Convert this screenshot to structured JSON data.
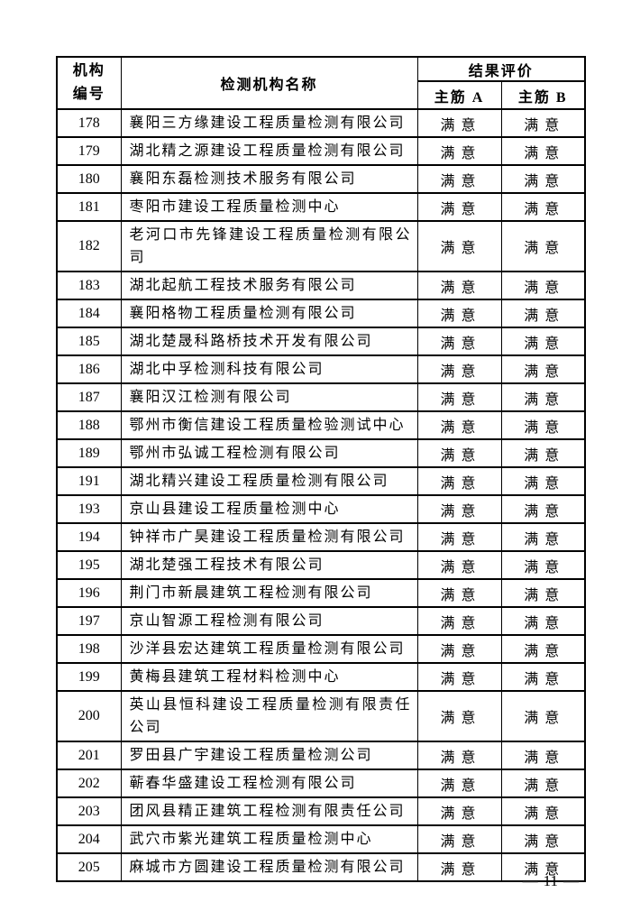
{
  "table": {
    "header": {
      "col_org_id": "机构\n编号",
      "col_name": "检测机构名称",
      "col_result_group": "结果评价",
      "col_rebar_a": "主筋 A",
      "col_rebar_b": "主筋 B"
    },
    "rows": [
      {
        "id": "178",
        "name": "襄阳三方缘建设工程质量检测有限公司",
        "a": "满意",
        "b": "满意"
      },
      {
        "id": "179",
        "name": "湖北精之源建设工程质量检测有限公司",
        "a": "满意",
        "b": "满意"
      },
      {
        "id": "180",
        "name": "襄阳东磊检测技术服务有限公司",
        "a": "满意",
        "b": "满意"
      },
      {
        "id": "181",
        "name": "枣阳市建设工程质量检测中心",
        "a": "满意",
        "b": "满意"
      },
      {
        "id": "182",
        "name": "老河口市先锋建设工程质量检测有限公司",
        "a": "满意",
        "b": "满意"
      },
      {
        "id": "183",
        "name": "湖北起航工程技术服务有限公司",
        "a": "满意",
        "b": "满意"
      },
      {
        "id": "184",
        "name": "襄阳格物工程质量检测有限公司",
        "a": "满意",
        "b": "满意"
      },
      {
        "id": "185",
        "name": "湖北楚晟科路桥技术开发有限公司",
        "a": "满意",
        "b": "满意"
      },
      {
        "id": "186",
        "name": "湖北中孚检测科技有限公司",
        "a": "满意",
        "b": "满意"
      },
      {
        "id": "187",
        "name": "襄阳汉江检测有限公司",
        "a": "满意",
        "b": "满意"
      },
      {
        "id": "188",
        "name": "鄂州市衡信建设工程质量检验测试中心",
        "a": "满意",
        "b": "满意"
      },
      {
        "id": "189",
        "name": "鄂州市弘诚工程检测有限公司",
        "a": "满意",
        "b": "满意"
      },
      {
        "id": "191",
        "name": "湖北精兴建设工程质量检测有限公司",
        "a": "满意",
        "b": "满意"
      },
      {
        "id": "193",
        "name": "京山县建设工程质量检测中心",
        "a": "满意",
        "b": "满意"
      },
      {
        "id": "194",
        "name": "钟祥市广昊建设工程质量检测有限公司",
        "a": "满意",
        "b": "满意"
      },
      {
        "id": "195",
        "name": "湖北楚强工程技术有限公司",
        "a": "满意",
        "b": "满意"
      },
      {
        "id": "196",
        "name": "荆门市新晨建筑工程检测有限公司",
        "a": "满意",
        "b": "满意"
      },
      {
        "id": "197",
        "name": "京山智源工程检测有限公司",
        "a": "满意",
        "b": "满意"
      },
      {
        "id": "198",
        "name": "沙洋县宏达建筑工程质量检测有限公司",
        "a": "满意",
        "b": "满意"
      },
      {
        "id": "199",
        "name": "黄梅县建筑工程材料检测中心",
        "a": "满意",
        "b": "满意"
      },
      {
        "id": "200",
        "name": "英山县恒科建设工程质量检测有限责任公司",
        "a": "满意",
        "b": "满意"
      },
      {
        "id": "201",
        "name": "罗田县广宇建设工程质量检测公司",
        "a": "满意",
        "b": "满意"
      },
      {
        "id": "202",
        "name": "蕲春华盛建设工程检测有限公司",
        "a": "满意",
        "b": "满意"
      },
      {
        "id": "203",
        "name": "团风县精正建筑工程检测有限责任公司",
        "a": "满意",
        "b": "满意"
      },
      {
        "id": "204",
        "name": "武穴市紫光建筑工程质量检测中心",
        "a": "满意",
        "b": "满意"
      },
      {
        "id": "205",
        "name": "麻城市方圆建设工程质量检测有限公司",
        "a": "满意",
        "b": "满意"
      }
    ]
  },
  "footer": {
    "dash": "—",
    "page_number": "11"
  },
  "colors": {
    "border": "#000000",
    "dash_gray": "#7d7d7d",
    "background": "#ffffff"
  }
}
